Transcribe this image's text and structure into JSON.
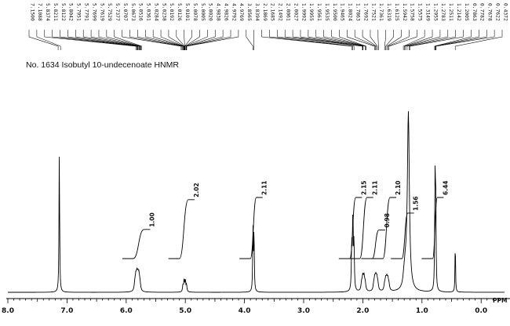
{
  "chart_data": {
    "type": "line",
    "title": "No. 1634 Isobutyl 10-undecenoate HNMR",
    "xlabel": "PPM",
    "xlim": [
      8.0,
      -0.4
    ],
    "ticks": [
      "8.0",
      "7.0",
      "6.0",
      "5.0",
      "4.0",
      "3.0",
      "2.0",
      "1.0",
      "0.0"
    ],
    "tick_values": [
      8.0,
      7.0,
      6.0,
      5.0,
      4.0,
      3.0,
      2.0,
      1.0,
      0.0
    ],
    "peak_labels": [
      "7.1500",
      "7.1088",
      "5.8374",
      "5.8211",
      "5.8122",
      "5.8042",
      "5.7951",
      "5.7791",
      "5.7699",
      "5.7619",
      "5.7529",
      "5.7377",
      "5.0707",
      "5.0673",
      "5.0516",
      "5.0361",
      "5.0284",
      "5.0238",
      "5.0192",
      "5.0126",
      "5.0101",
      "5.0078",
      "5.0005",
      "5.0020",
      "4.9838",
      "4.9826",
      "4.9792",
      "4.9769",
      "3.8565",
      "3.8394",
      "2.1869",
      "2.1685",
      "2.1492",
      "2.0061",
      "2.0027",
      "1.9992",
      "1.9955",
      "1.9561",
      "1.9535",
      "1.9500",
      "1.9465",
      "1.8024",
      "1.7863",
      "1.7692",
      "1.7521",
      "1.7361",
      "1.6319",
      "1.6125",
      "1.5942",
      "1.5758",
      "1.5575",
      "1.3149",
      "1.2955",
      "1.2783",
      "1.2511",
      "1.2142",
      "1.2005",
      "0.7863",
      "0.7782",
      "0.7678",
      "0.7622",
      "0.4372"
    ],
    "integrals": [
      {
        "label": "1.00",
        "from": 5.88,
        "to": 5.7,
        "value": 1.0
      },
      {
        "label": "2.02",
        "from": 5.1,
        "to": 4.95,
        "value": 2.02
      },
      {
        "label": "2.11",
        "from": 3.9,
        "to": 3.8,
        "value": 2.11
      },
      {
        "label": "2.15",
        "from": 2.22,
        "to": 2.12,
        "value": 2.15
      },
      {
        "label": "2.11",
        "from": 2.05,
        "to": 1.93,
        "value": 2.11
      },
      {
        "label": "0.98",
        "from": 1.84,
        "to": 1.73,
        "value": 0.98
      },
      {
        "label": "2.10",
        "from": 1.66,
        "to": 1.54,
        "value": 2.1
      },
      {
        "label": "1.56",
        "from": 1.34,
        "to": 1.24,
        "value": 1.56
      },
      {
        "label": "6.44",
        "from": 0.82,
        "to": 0.74,
        "value": 6.44
      }
    ],
    "peaks": [
      {
        "ppm": 7.13,
        "height": 1.0,
        "width": 0.006
      },
      {
        "ppm": 5.81,
        "height": 0.09,
        "width": 0.012,
        "split": 6,
        "spacing": 0.017
      },
      {
        "ppm": 5.01,
        "height": 0.08,
        "width": 0.008,
        "split": 4,
        "spacing": 0.02
      },
      {
        "ppm": 3.848,
        "height": 0.72,
        "width": 0.006,
        "split": 2,
        "spacing": 0.017
      },
      {
        "ppm": 2.168,
        "height": 0.55,
        "width": 0.007,
        "split": 3,
        "spacing": 0.019
      },
      {
        "ppm": 1.99,
        "height": 0.09,
        "width": 0.012,
        "split": 4,
        "spacing": 0.02
      },
      {
        "ppm": 1.78,
        "height": 0.075,
        "width": 0.012,
        "split": 5,
        "spacing": 0.017
      },
      {
        "ppm": 1.595,
        "height": 0.07,
        "width": 0.012,
        "split": 5,
        "spacing": 0.018
      },
      {
        "ppm": 1.285,
        "height": 0.09,
        "width": 0.02,
        "split": 3,
        "spacing": 0.02
      },
      {
        "ppm": 1.23,
        "height": 1.25,
        "width": 0.02
      },
      {
        "ppm": 0.774,
        "height": 1.25,
        "width": 0.006,
        "split": 2,
        "spacing": 0.012
      },
      {
        "ppm": 0.4372,
        "height": 0.38,
        "width": 0.005
      }
    ],
    "grid": false,
    "legend": "none"
  }
}
